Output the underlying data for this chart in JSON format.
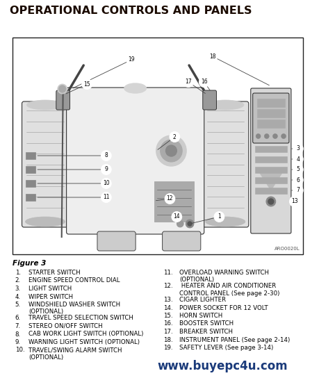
{
  "title": "OPERATIONAL CONTROLS AND PANELS",
  "figure_label": "Figure 3",
  "watermark": "www.buyepc4u.com",
  "bg_color": "#ffffff",
  "title_color": "#1a0a00",
  "text_color": "#000000",
  "watermark_color": "#1a3a7a",
  "title_fontsize": 11.5,
  "body_fontsize": 6.2,
  "figure_label_fontsize": 7.5,
  "left_items": [
    [
      "1.",
      "STARTER SWITCH"
    ],
    [
      "2.",
      "ENGINE SPEED CONTROL DIAL"
    ],
    [
      "3.",
      "LIGHT SWITCH"
    ],
    [
      "4.",
      "WIPER SWITCH"
    ],
    [
      "5.",
      "WINDSHIELD WASHER SWITCH",
      "(OPTIONAL)"
    ],
    [
      "6.",
      "TRAVEL SPEED SELECTION SWITCH"
    ],
    [
      "7.",
      "STEREO ON/OFF SWITCH"
    ],
    [
      "8.",
      "CAB WORK LIGHT SWITCH (OPTIONAL)"
    ],
    [
      "9.",
      "WARNING LIGHT SWITCH (OPTIONAL)"
    ],
    [
      "10.",
      "TRAVEL/SWING ALARM SWITCH",
      "(OPTIONAL)"
    ]
  ],
  "right_items": [
    [
      "11.",
      "OVERLOAD WARNING SWITCH",
      "(OPTIONAL)"
    ],
    [
      "12.",
      " HEATER AND AIR CONDITIONER",
      "CONTROL PANEL (See page 2-30)"
    ],
    [
      "13.",
      "CIGAR LIGHTER"
    ],
    [
      "14.",
      "POWER SOCKET FOR 12 VOLT"
    ],
    [
      "15.",
      "HORN SWITCH"
    ],
    [
      "16.",
      "BOOSTER SWITCH"
    ],
    [
      "17.",
      "BREAKER SWITCH"
    ],
    [
      "18.",
      "INSTRUMENT PANEL (See page 2-14)"
    ],
    [
      "19.",
      "SAFETY LEVER (See page 3-14)"
    ]
  ]
}
